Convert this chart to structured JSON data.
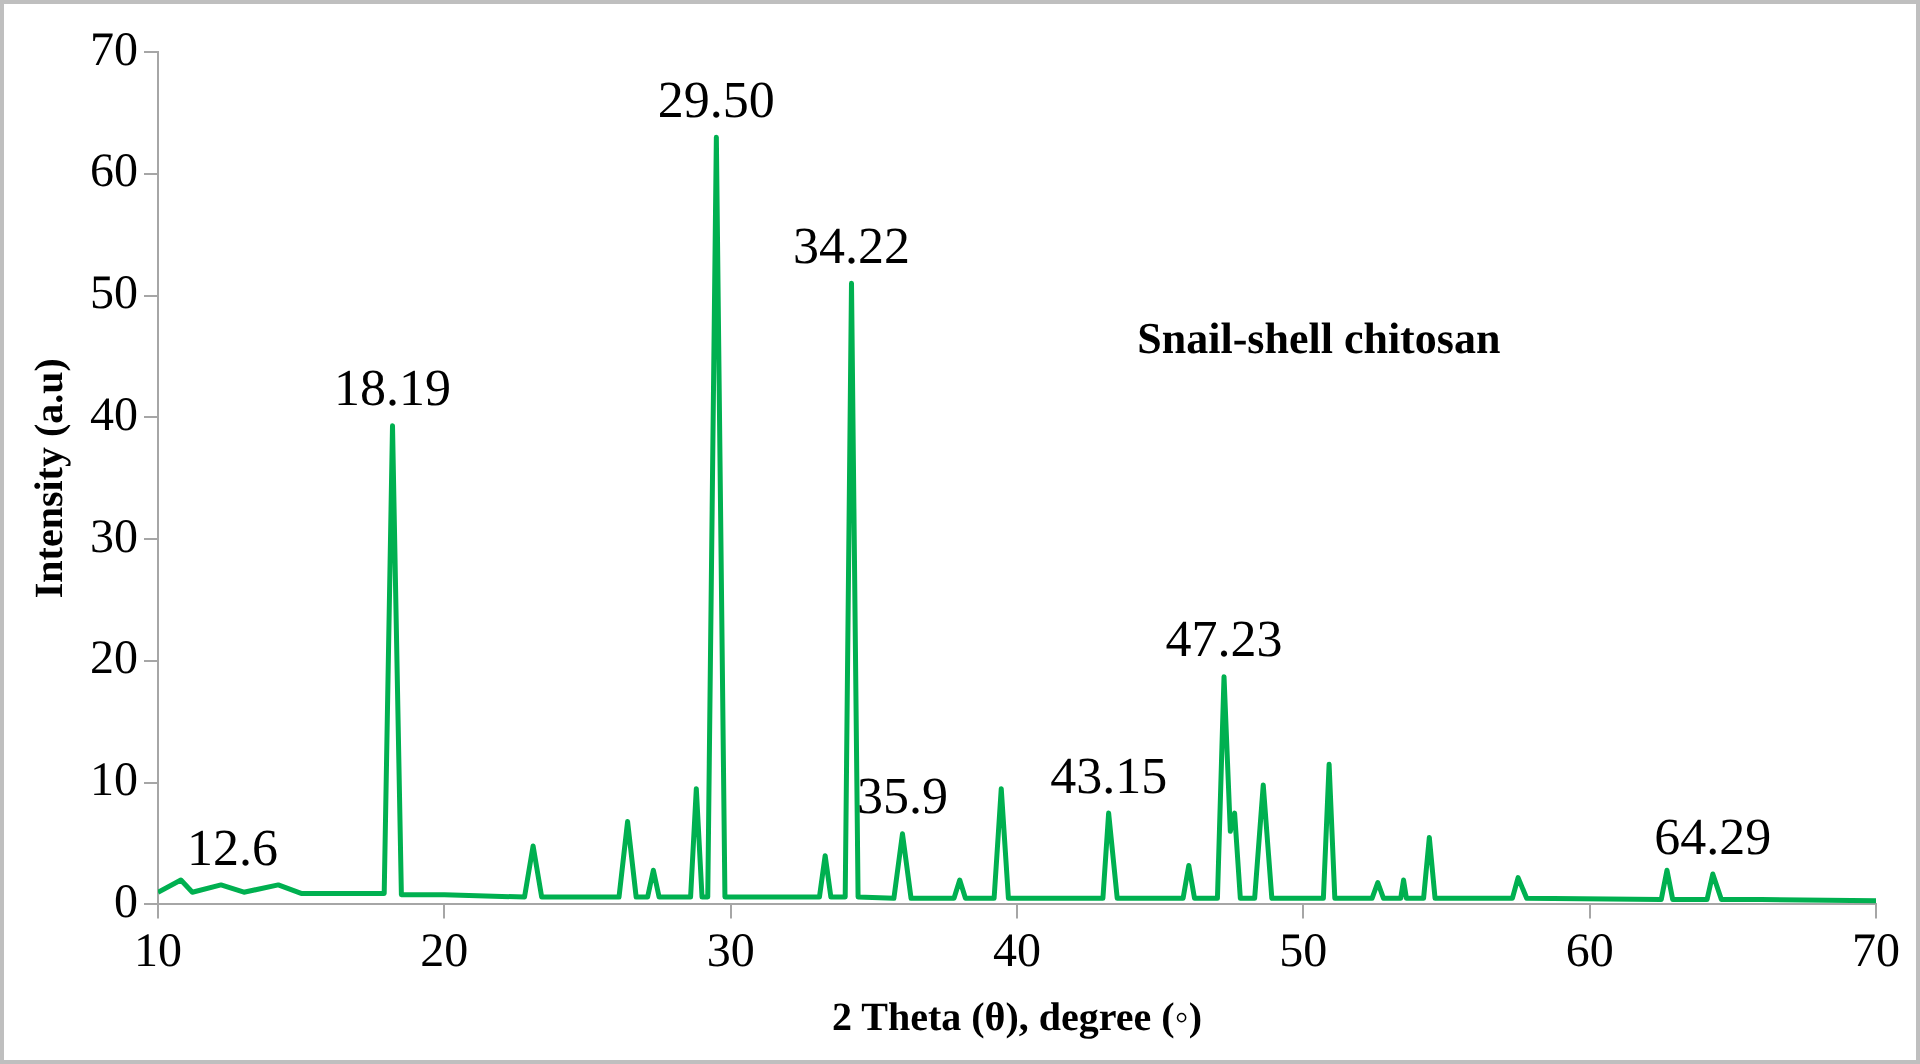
{
  "chart_data": {
    "type": "line",
    "xlabel": "2 Theta (θ), degree (◦)",
    "ylabel": "Intensity (a.u)",
    "x": [
      10,
      10.8,
      11.2,
      12.2,
      13,
      14.2,
      15,
      17.9,
      18.19,
      18.5,
      20,
      22.8,
      23.1,
      23.4,
      26.1,
      26.4,
      26.7,
      27.1,
      27.3,
      27.5,
      28.6,
      28.8,
      29.0,
      29.2,
      29.5,
      29.8,
      31,
      33.1,
      33.3,
      33.5,
      34.0,
      34.22,
      34.45,
      35.7,
      36.0,
      36.3,
      37.8,
      38.0,
      38.2,
      39.2,
      39.45,
      39.7,
      43.0,
      43.2,
      43.5,
      45.8,
      46.0,
      46.2,
      47.0,
      47.23,
      47.45,
      47.6,
      47.8,
      48.3,
      48.6,
      48.9,
      50.7,
      50.9,
      51.1,
      52.4,
      52.6,
      52.8,
      53.4,
      53.5,
      53.6,
      54.2,
      54.4,
      54.6,
      57.3,
      57.5,
      57.8,
      62.5,
      62.7,
      62.9,
      64.1,
      64.3,
      64.6,
      66,
      70
    ],
    "series": [
      {
        "color": "#00b050",
        "values": [
          1.0,
          2.0,
          1.0,
          1.6,
          1.0,
          1.6,
          0.9,
          0.9,
          39.3,
          0.8,
          0.8,
          0.6,
          4.8,
          0.6,
          0.6,
          6.8,
          0.6,
          0.6,
          2.8,
          0.6,
          0.6,
          9.5,
          0.6,
          0.6,
          63,
          0.6,
          0.6,
          0.6,
          4.0,
          0.6,
          0.6,
          51,
          0.6,
          0.5,
          5.8,
          0.5,
          0.5,
          2.0,
          0.5,
          0.5,
          9.5,
          0.5,
          0.5,
          7.5,
          0.5,
          0.5,
          3.2,
          0.5,
          0.5,
          18.7,
          6,
          7.5,
          0.5,
          0.5,
          9.8,
          0.5,
          0.5,
          11.5,
          0.5,
          0.5,
          1.8,
          0.5,
          0.5,
          2.0,
          0.5,
          0.5,
          5.5,
          0.5,
          0.5,
          2.2,
          0.5,
          0.4,
          2.8,
          0.4,
          0.4,
          2.5,
          0.4,
          0.4,
          0.3
        ]
      }
    ],
    "xlim": [
      10,
      70
    ],
    "xticks": [
      10,
      20,
      30,
      40,
      50,
      60,
      70
    ],
    "ylim": [
      0,
      70
    ],
    "yticks": [
      0,
      10,
      20,
      30,
      40,
      50,
      60,
      70
    ],
    "grid": false,
    "legend": false,
    "marker": "none",
    "line_style": "solid",
    "annotations": [
      {
        "text": "12.6",
        "x": 12.6,
        "y": 1.6
      },
      {
        "text": "18.19",
        "x": 18.19,
        "y": 39.3
      },
      {
        "text": "29.50",
        "x": 29.5,
        "y": 63
      },
      {
        "text": "34.22",
        "x": 34.22,
        "y": 51
      },
      {
        "text": "35.9",
        "x": 36.0,
        "y": 5.8
      },
      {
        "text": "43.15",
        "x": 43.2,
        "y": 7.5
      },
      {
        "text": "47.23",
        "x": 47.23,
        "y": 18.7
      },
      {
        "text": "64.29",
        "x": 64.3,
        "y": 2.5
      },
      "Snail-shell chitosan"
    ]
  }
}
